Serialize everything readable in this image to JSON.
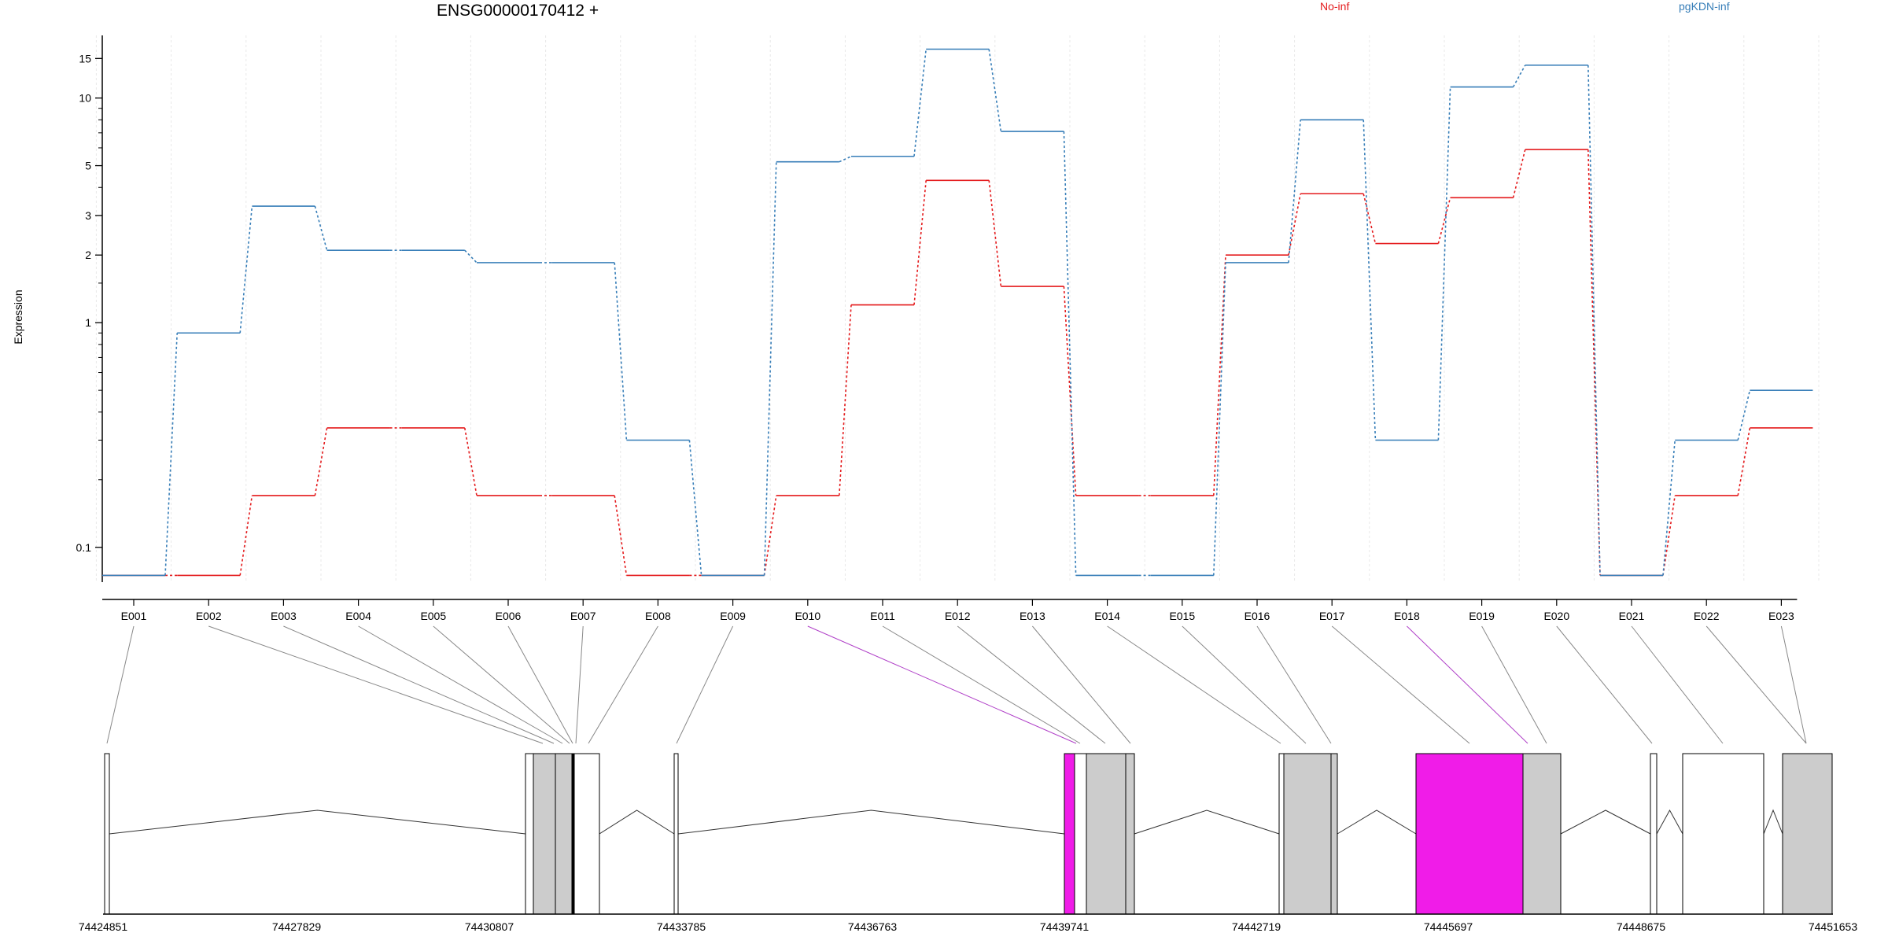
{
  "chart_data": {
    "type": "line",
    "title": "ENSG00000170412 +",
    "ylabel": "Expression",
    "xlabel": "",
    "yscale": "log",
    "ylim": [
      0.07,
      19
    ],
    "yticks": [
      0.1,
      1,
      2,
      3,
      5,
      10,
      15
    ],
    "categories": [
      "E001",
      "E002",
      "E003",
      "E004",
      "E005",
      "E006",
      "E007",
      "E008",
      "E009",
      "E010",
      "E011",
      "E012",
      "E013",
      "E014",
      "E015",
      "E016",
      "E017",
      "E018",
      "E019",
      "E020",
      "E021",
      "E022",
      "E023"
    ],
    "series": [
      {
        "name": "No-inf",
        "color": "#e41a1c",
        "values": [
          0.075,
          0.075,
          0.17,
          0.34,
          0.34,
          0.17,
          0.17,
          0.075,
          0.075,
          0.17,
          1.2,
          4.3,
          1.45,
          0.17,
          0.17,
          2.0,
          3.75,
          2.25,
          3.6,
          5.9,
          0.075,
          0.17,
          0.34
        ]
      },
      {
        "name": "pgKDN-inf",
        "color": "#377eb8",
        "values": [
          0.075,
          0.9,
          3.3,
          2.1,
          2.1,
          1.85,
          1.85,
          0.3,
          0.075,
          5.2,
          5.5,
          16.5,
          7.1,
          0.075,
          0.075,
          1.85,
          8.0,
          0.3,
          11.2,
          14.0,
          0.075,
          0.3,
          0.5
        ]
      }
    ],
    "gene_model": {
      "coordinate_ticks": [
        "74424851",
        "74427829",
        "74430807",
        "74433785",
        "74436763",
        "74439741",
        "74442719",
        "74445697",
        "74448675",
        "74451653"
      ],
      "coordinate_range": [
        74424851,
        74451653
      ],
      "highlighted_exons": [
        "E010",
        "E018"
      ],
      "highlight_color": "#f01ce8",
      "exon_fill": "#cccccc"
    },
    "grid": false,
    "legend_position": "top"
  }
}
